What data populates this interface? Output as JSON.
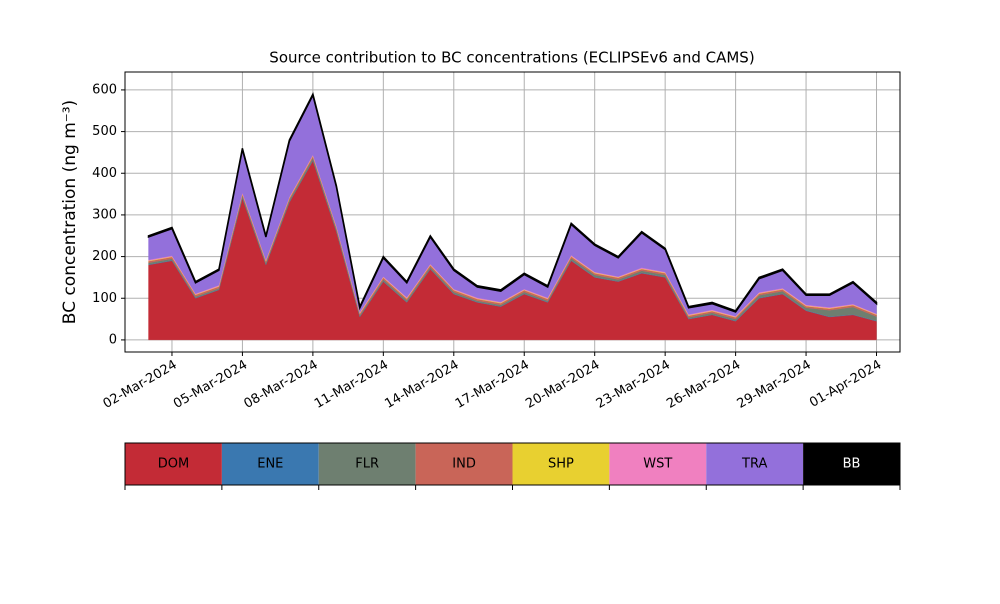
{
  "chart_data": {
    "type": "stacked_area",
    "title": "Source contribution to BC concentrations (ECLIPSEv6 and CAMS)",
    "y_label": "BC concentration (ng m⁻³)",
    "x": [
      "2024-03-01",
      "2024-03-02",
      "2024-03-03",
      "2024-03-04",
      "2024-03-05",
      "2024-03-06",
      "2024-03-07",
      "2024-03-08",
      "2024-03-09",
      "2024-03-10",
      "2024-03-11",
      "2024-03-12",
      "2024-03-13",
      "2024-03-14",
      "2024-03-15",
      "2024-03-16",
      "2024-03-17",
      "2024-03-18",
      "2024-03-19",
      "2024-03-20",
      "2024-03-21",
      "2024-03-22",
      "2024-03-23",
      "2024-03-24",
      "2024-03-25",
      "2024-03-26",
      "2024-03-27",
      "2024-03-28",
      "2024-03-29",
      "2024-03-30",
      "2024-03-31",
      "2024-04-01"
    ],
    "series": [
      {
        "name": "DOM",
        "color": "#c32b36",
        "values": [
          180,
          190,
          100,
          120,
          340,
          180,
          330,
          430,
          260,
          55,
          140,
          90,
          170,
          110,
          90,
          80,
          110,
          90,
          190,
          150,
          140,
          160,
          150,
          50,
          60,
          45,
          100,
          110,
          70,
          55,
          60,
          45
        ]
      },
      {
        "name": "ENE",
        "color": "#3a78b0",
        "values": [
          1,
          1,
          1,
          1,
          1,
          1,
          1,
          1,
          1,
          1,
          1,
          1,
          1,
          1,
          1,
          1,
          1,
          1,
          1,
          1,
          1,
          1,
          1,
          1,
          1,
          1,
          1,
          1,
          1,
          1,
          1,
          1
        ]
      },
      {
        "name": "FLR",
        "color": "#6e7f70",
        "values": [
          4,
          4,
          3,
          3,
          5,
          4,
          5,
          6,
          5,
          3,
          4,
          4,
          4,
          4,
          3,
          3,
          4,
          3,
          5,
          5,
          4,
          5,
          5,
          3,
          4,
          4,
          6,
          6,
          6,
          15,
          18,
          10
        ]
      },
      {
        "name": "IND",
        "color": "#c96558",
        "values": [
          4,
          4,
          4,
          4,
          4,
          4,
          4,
          4,
          4,
          4,
          4,
          4,
          4,
          4,
          4,
          4,
          4,
          4,
          4,
          4,
          4,
          4,
          4,
          4,
          4,
          4,
          4,
          4,
          4,
          4,
          4,
          4
        ]
      },
      {
        "name": "SHP",
        "color": "#e8d030",
        "values": [
          1,
          1,
          1,
          1,
          1,
          1,
          1,
          1,
          1,
          1,
          1,
          1,
          1,
          1,
          1,
          1,
          1,
          1,
          1,
          1,
          1,
          1,
          1,
          1,
          1,
          1,
          1,
          1,
          1,
          1,
          1,
          1
        ]
      },
      {
        "name": "WST",
        "color": "#f080c0",
        "values": [
          2,
          2,
          2,
          2,
          2,
          2,
          2,
          2,
          2,
          2,
          2,
          2,
          2,
          2,
          2,
          2,
          2,
          2,
          2,
          2,
          2,
          2,
          2,
          2,
          2,
          2,
          2,
          2,
          2,
          2,
          2,
          2
        ]
      },
      {
        "name": "TRA",
        "color": "#9370db",
        "values": [
          55,
          65,
          26,
          36,
          104,
          55,
          134,
          143,
          94,
          11,
          45,
          35,
          65,
          45,
          26,
          26,
          35,
          26,
          74,
          64,
          45,
          84,
          54,
          16,
          15,
          10,
          33,
          43,
          23,
          29,
          51,
          24
        ]
      },
      {
        "name": "BB",
        "color": "#000000",
        "values": [
          3,
          3,
          3,
          3,
          3,
          3,
          3,
          3,
          3,
          3,
          3,
          3,
          3,
          3,
          3,
          3,
          3,
          3,
          3,
          3,
          3,
          3,
          3,
          3,
          3,
          3,
          3,
          3,
          3,
          3,
          3,
          3
        ]
      }
    ],
    "xlim": [
      "2024-02-29",
      "2024-04-02"
    ],
    "xticks": [
      {
        "value": "2024-03-02",
        "label": "02-Mar-2024"
      },
      {
        "value": "2024-03-05",
        "label": "05-Mar-2024"
      },
      {
        "value": "2024-03-08",
        "label": "08-Mar-2024"
      },
      {
        "value": "2024-03-11",
        "label": "11-Mar-2024"
      },
      {
        "value": "2024-03-14",
        "label": "14-Mar-2024"
      },
      {
        "value": "2024-03-17",
        "label": "17-Mar-2024"
      },
      {
        "value": "2024-03-20",
        "label": "20-Mar-2024"
      },
      {
        "value": "2024-03-23",
        "label": "23-Mar-2024"
      },
      {
        "value": "2024-03-26",
        "label": "26-Mar-2024"
      },
      {
        "value": "2024-03-29",
        "label": "29-Mar-2024"
      },
      {
        "value": "2024-04-01",
        "label": "01-Apr-2024"
      }
    ],
    "ylim": [
      -29,
      643
    ],
    "yticks": [
      0,
      100,
      200,
      300,
      400,
      500,
      600
    ],
    "grid": true
  }
}
